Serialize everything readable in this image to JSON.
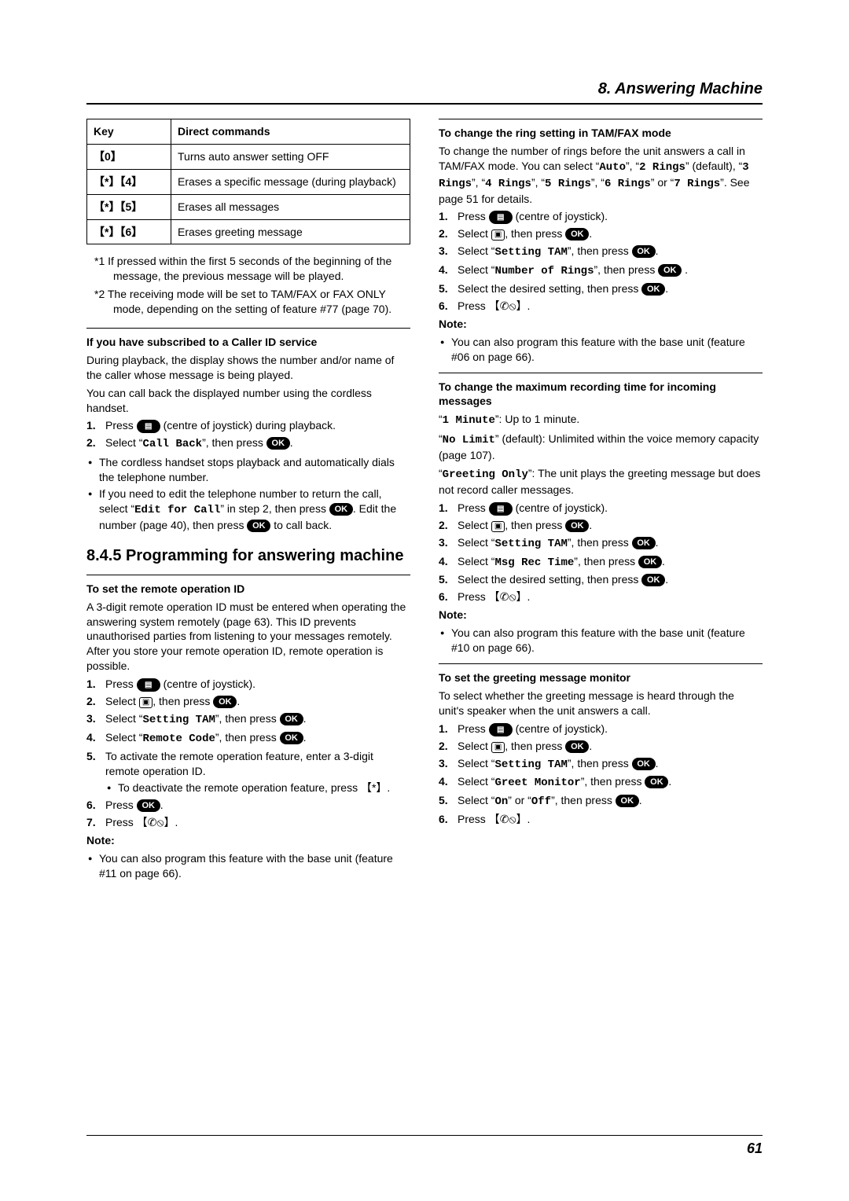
{
  "chapter": "8. Answering Machine",
  "page_number": "61",
  "table": {
    "head_key": "Key",
    "head_cmd": "Direct commands",
    "rows": [
      {
        "key": "【0】",
        "cmd": "Turns auto answer setting OFF"
      },
      {
        "key": "【*】【4】",
        "cmd": "Erases a specific message (during playback)"
      },
      {
        "key": "【*】【5】",
        "cmd": "Erases all messages"
      },
      {
        "key": "【*】【6】",
        "cmd": "Erases greeting message"
      }
    ]
  },
  "footnote1": "*1  If pressed within the first 5 seconds of the beginning of the message, the previous message will be played.",
  "footnote2": "*2  The receiving mode will be set to TAM/FAX or FAX ONLY mode, depending on the setting of feature #77 (page 70).",
  "caller_id": {
    "title": "If you have subscribed to a Caller ID service",
    "p1": "During playback, the display shows the number and/or name of the caller whose message is being played.",
    "p2": "You can call back the displayed number using the cordless handset.",
    "s1a": "Press ",
    "s1b": " (centre of joystick) during playback.",
    "s2a": "Select “",
    "s2cmd": "Call Back",
    "s2b": "”, then press ",
    "b1": "The cordless handset stops playback and automatically dials the telephone number.",
    "b2a": "If you need to edit the telephone number to return the call, select “",
    "b2cmd": "Edit for Call",
    "b2b": "” in step 2, then press ",
    "b2c": ". Edit the number (page 40), then press ",
    "b2d": " to call back."
  },
  "h845": "8.4.5 Programming for answering machine",
  "remote_id": {
    "title": "To set the remote operation ID",
    "p1": "A 3-digit remote operation ID must be entered when operating the answering system remotely (page 63). This ID prevents unauthorised parties from listening to your messages remotely. After you store your remote operation ID, remote operation is possible.",
    "s1a": "Press ",
    "s1b": " (centre of joystick).",
    "s2a": "Select ",
    "s2b": ", then press ",
    "s3a": "Select “",
    "s3cmd": "Setting TAM",
    "s3b": "”, then press ",
    "s4a": "Select “",
    "s4cmd": "Remote Code",
    "s4b": "”, then press ",
    "s5": "To activate the remote operation feature, enter a 3-digit remote operation ID.",
    "s5b": "To deactivate the remote operation feature, press 【*】.",
    "s6a": "Press ",
    "s7a": "Press 【",
    "s7b": "】.",
    "note_lbl": "Note:",
    "note1": "You can also program this feature with the base unit (feature #11 on page 66)."
  },
  "ring": {
    "title": "To change the ring setting in TAM/FAX mode",
    "p1a": "To change the number of rings before the unit answers a call in TAM/FAX mode. You can select “",
    "opt_auto": "Auto",
    "p1b": "”, “",
    "opt2": "2 Rings",
    "p1c": "” (default), “",
    "opt3": "3 Rings",
    "p1d": "”, “",
    "opt4": "4 Rings",
    "p1e": "”, “",
    "opt5": "5 Rings",
    "p1f": "”, “",
    "opt6": "6 Rings",
    "p1g": "” or “",
    "opt7": "7 Rings",
    "p1h": "”. See page 51 for details.",
    "s1a": "Press ",
    "s1b": " (centre of joystick).",
    "s2a": "Select ",
    "s2b": ", then press ",
    "s3a": "Select “",
    "s3cmd": "Setting TAM",
    "s3b": "”, then press ",
    "s4a": "Select “",
    "s4cmd": "Number of Rings",
    "s4b": "”, then press ",
    "s5a": "Select the desired setting, then press ",
    "s6a": "Press 【",
    "s6b": "】.",
    "note_lbl": "Note:",
    "note1": "You can also program this feature with the base unit (feature #06 on page 66)."
  },
  "rectime": {
    "title": "To change the maximum recording time for incoming messages",
    "l1a": "“",
    "l1cmd": "1 Minute",
    "l1b": "”: Up to 1 minute.",
    "l2a": "“",
    "l2cmd": "No Limit",
    "l2b": "” (default): Unlimited within the voice memory capacity (page 107).",
    "l3a": "“",
    "l3cmd": "Greeting Only",
    "l3b": "”: The unit plays the greeting message but does not record caller messages.",
    "s1a": "Press ",
    "s1b": " (centre of joystick).",
    "s2a": "Select ",
    "s2b": ", then press ",
    "s3a": "Select “",
    "s3cmd": "Setting TAM",
    "s3b": "”, then press ",
    "s4a": "Select “",
    "s4cmd": "Msg Rec Time",
    "s4b": "”, then press ",
    "s5a": "Select the desired setting, then press ",
    "s6a": "Press 【",
    "s6b": "】.",
    "note_lbl": "Note:",
    "note1": "You can also program this feature with the base unit (feature #10 on page 66)."
  },
  "greet": {
    "title": "To set the greeting message monitor",
    "p1": "To select whether the greeting message is heard through the unit's speaker when the unit answers a call.",
    "s1a": "Press ",
    "s1b": " (centre of joystick).",
    "s2a": "Select ",
    "s2b": ", then press ",
    "s3a": "Select “",
    "s3cmd": "Setting TAM",
    "s3b": "”, then press ",
    "s4a": "Select “",
    "s4cmd": "Greet Monitor",
    "s4b": "”, then press ",
    "s5a": "Select “",
    "s5on": "On",
    "s5b": "” or “",
    "s5off": "Off",
    "s5c": "”, then press ",
    "s6a": "Press 【",
    "s6b": "】."
  },
  "ok_label": "OK"
}
